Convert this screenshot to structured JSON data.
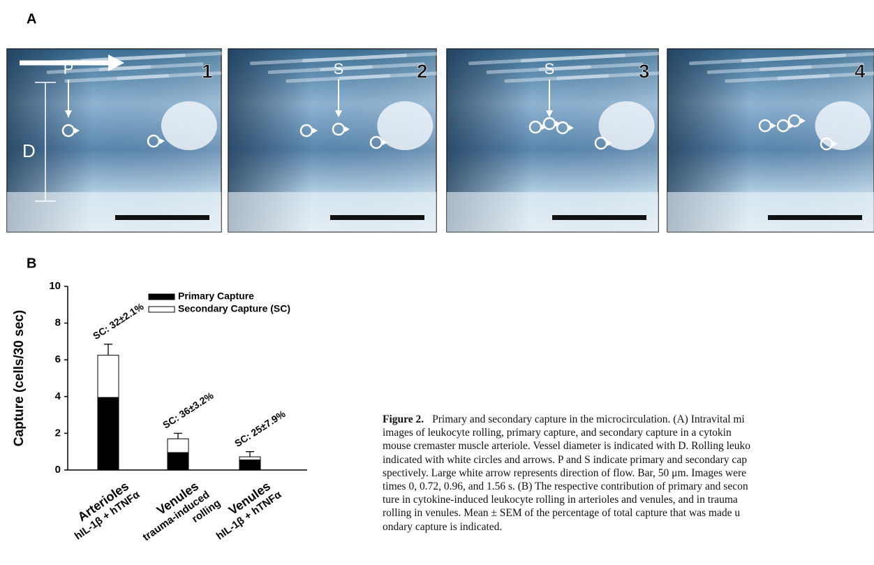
{
  "panel_a": {
    "label": "A",
    "images": [
      {
        "number": "1",
        "markers": [
          "P",
          "D"
        ]
      },
      {
        "number": "2",
        "markers": [
          "S"
        ]
      },
      {
        "number": "3",
        "markers": [
          "S"
        ]
      },
      {
        "number": "4",
        "markers": []
      }
    ]
  },
  "panel_b": {
    "label": "B"
  },
  "chart_data": {
    "type": "stacked_bar",
    "ylabel": "Capture (cells/30 sec)",
    "categories": [
      [
        "Arterioles",
        "hIL-1β + hTNFα"
      ],
      [
        "Venules",
        "trauma-induced",
        "rolling"
      ],
      [
        "Venules",
        "hIL-1β + hTNFα"
      ]
    ],
    "series": [
      {
        "name": "Primary Capture",
        "color": "#000000",
        "values": [
          3.95,
          0.95,
          0.55
        ],
        "errors": [
          0.35,
          0.15,
          0.12
        ]
      },
      {
        "name": "Secondary Capture (SC)",
        "color": "#ffffff",
        "values": [
          2.3,
          0.75,
          0.17
        ],
        "errors": [
          0.6,
          0.3,
          0.28
        ]
      }
    ],
    "annotations": [
      "SC: 32±2.1%",
      "SC: 36±3.2%",
      "SC: 25±7.9%"
    ],
    "ylim": [
      0,
      10
    ],
    "yticks": [
      0,
      2,
      4,
      6,
      8,
      10
    ],
    "legend": "upper right"
  },
  "caption": {
    "label": "Figure 2.",
    "lines": [
      "Primary and secondary capture in the microcirculation. (A) Intravital mi",
      "images of leukocyte rolling, primary capture, and secondary capture in a cytokin",
      "mouse cremaster muscle arteriole. Vessel diameter is indicated with D. Rolling leuko",
      "indicated with white circles and arrows. P and S indicate primary and secondary cap",
      "spectively. Large white arrow represents direction of flow. Bar, 50 μm. Images were",
      "times 0, 0.72, 0.96, and 1.56 s. (B) The respective contribution of primary and secon",
      "ture in cytokine-induced leukocyte rolling in arterioles and venules, and in trauma",
      "rolling in venules. Mean ± SEM of the percentage of total capture that was made u",
      "ondary capture is indicated."
    ]
  }
}
